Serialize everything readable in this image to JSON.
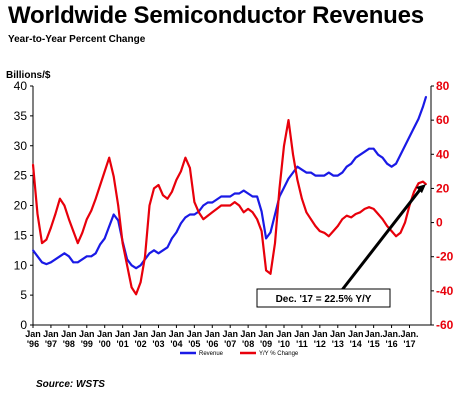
{
  "title": "Worldwide Semiconductor Revenues",
  "subtitle": "Year-to-Year Percent Change",
  "source": "Source: WSTS",
  "colors": {
    "revenue": "#1a1ae6",
    "yoy": "#e8000b",
    "arrow": "#000000"
  },
  "chart_data": {
    "type": "line",
    "ylabel": "Billions/$",
    "y_left_lim": [
      0,
      40
    ],
    "y_left_ticks": [
      "0",
      "5",
      "10",
      "15",
      "20",
      "25",
      "30",
      "35",
      "40"
    ],
    "y_right_lim": [
      -60,
      80
    ],
    "y_right_ticks": [
      "-60",
      "-40",
      "-20",
      "0",
      "20",
      "40",
      "60",
      "80"
    ],
    "grid": false,
    "legend_position": "bottom-center",
    "x_ticks": [
      {
        "l1": "Jan",
        "l2": "'96"
      },
      {
        "l1": "Jan",
        "l2": "'97"
      },
      {
        "l1": "Jan",
        "l2": "'98"
      },
      {
        "l1": "Jan",
        "l2": "'99"
      },
      {
        "l1": "Jan",
        "l2": "'00"
      },
      {
        "l1": "Jan",
        "l2": "'01"
      },
      {
        "l1": "Jan",
        "l2": "'02"
      },
      {
        "l1": "Jan",
        "l2": "'03"
      },
      {
        "l1": "Jan",
        "l2": "'04"
      },
      {
        "l1": "Jan",
        "l2": "'05"
      },
      {
        "l1": "Jan",
        "l2": "'06"
      },
      {
        "l1": "Jan",
        "l2": "'07"
      },
      {
        "l1": "Jan",
        "l2": "'08"
      },
      {
        "l1": "Jan",
        "l2": "'09"
      },
      {
        "l1": "Jan",
        "l2": "'10"
      },
      {
        "l1": "Jan",
        "l2": "'11"
      },
      {
        "l1": "Jan",
        "l2": "'12"
      },
      {
        "l1": "Jan",
        "l2": "'13"
      },
      {
        "l1": "Jan",
        "l2": "'14"
      },
      {
        "l1": "Jan.",
        "l2": "'15"
      },
      {
        "l1": "Jan.",
        "l2": "'16"
      },
      {
        "l1": "Jan.",
        "l2": "'17"
      }
    ],
    "x_range": [
      1996.0,
      2017.92
    ],
    "series": [
      {
        "name": "Revenue",
        "axis": "left",
        "x": [
          1996.0,
          1996.25,
          1996.5,
          1996.75,
          1997.0,
          1997.25,
          1997.5,
          1997.75,
          1998.0,
          1998.25,
          1998.5,
          1998.75,
          1999.0,
          1999.25,
          1999.5,
          1999.75,
          2000.0,
          2000.25,
          2000.5,
          2000.75,
          2001.0,
          2001.25,
          2001.5,
          2001.75,
          2002.0,
          2002.25,
          2002.5,
          2002.75,
          2003.0,
          2003.25,
          2003.5,
          2003.75,
          2004.0,
          2004.25,
          2004.5,
          2004.75,
          2005.0,
          2005.25,
          2005.5,
          2005.75,
          2006.0,
          2006.25,
          2006.5,
          2006.75,
          2007.0,
          2007.25,
          2007.5,
          2007.75,
          2008.0,
          2008.25,
          2008.5,
          2008.75,
          2009.0,
          2009.25,
          2009.5,
          2009.75,
          2010.0,
          2010.25,
          2010.5,
          2010.75,
          2011.0,
          2011.25,
          2011.5,
          2011.75,
          2012.0,
          2012.25,
          2012.5,
          2012.75,
          2013.0,
          2013.25,
          2013.5,
          2013.75,
          2014.0,
          2014.25,
          2014.5,
          2014.75,
          2015.0,
          2015.25,
          2015.5,
          2015.75,
          2016.0,
          2016.25,
          2016.5,
          2016.75,
          2017.0,
          2017.25,
          2017.5,
          2017.75,
          2017.92
        ],
        "y": [
          12.5,
          11.5,
          10.5,
          10.2,
          10.5,
          11,
          11.5,
          12,
          11.5,
          10.5,
          10.5,
          11,
          11.5,
          11.5,
          12,
          13.5,
          14.5,
          16.5,
          18.5,
          17.5,
          14,
          11,
          10,
          9.5,
          10,
          11,
          12,
          12.5,
          12,
          12.5,
          13,
          14.5,
          15.5,
          17,
          18,
          18.5,
          18.5,
          19,
          20,
          20.5,
          20.5,
          21,
          21.5,
          21.5,
          21.5,
          22,
          22,
          22.5,
          22,
          21.5,
          21.5,
          19,
          14.5,
          15.5,
          18.5,
          21.5,
          23,
          24.5,
          25.5,
          26.5,
          26,
          25.5,
          25.5,
          25,
          25,
          25,
          25.5,
          25,
          25,
          25.5,
          26.5,
          27,
          28,
          28.5,
          29,
          29.5,
          29.5,
          28.5,
          28,
          27,
          26.5,
          27,
          28.5,
          30,
          31.5,
          33,
          34.5,
          36.5,
          38.2
        ]
      },
      {
        "name": "Y/Y % Change",
        "axis": "right",
        "x": [
          1996.0,
          1996.25,
          1996.5,
          1996.75,
          1997.0,
          1997.25,
          1997.5,
          1997.75,
          1998.0,
          1998.25,
          1998.5,
          1998.75,
          1999.0,
          1999.25,
          1999.5,
          1999.75,
          2000.0,
          2000.25,
          2000.5,
          2000.75,
          2001.0,
          2001.25,
          2001.5,
          2001.75,
          2002.0,
          2002.25,
          2002.5,
          2002.75,
          2003.0,
          2003.25,
          2003.5,
          2003.75,
          2004.0,
          2004.25,
          2004.5,
          2004.75,
          2005.0,
          2005.25,
          2005.5,
          2005.75,
          2006.0,
          2006.25,
          2006.5,
          2006.75,
          2007.0,
          2007.25,
          2007.5,
          2007.75,
          2008.0,
          2008.25,
          2008.5,
          2008.75,
          2009.0,
          2009.25,
          2009.5,
          2009.75,
          2010.0,
          2010.25,
          2010.5,
          2010.75,
          2011.0,
          2011.25,
          2011.5,
          2011.75,
          2012.0,
          2012.25,
          2012.5,
          2012.75,
          2013.0,
          2013.25,
          2013.5,
          2013.75,
          2014.0,
          2014.25,
          2014.5,
          2014.75,
          2015.0,
          2015.25,
          2015.5,
          2015.75,
          2016.0,
          2016.25,
          2016.5,
          2016.75,
          2017.0,
          2017.25,
          2017.5,
          2017.75,
          2017.92
        ],
        "y": [
          34,
          5,
          -12,
          -10,
          -3,
          5,
          14,
          10,
          2,
          -5,
          -12,
          -6,
          2,
          7,
          14,
          22,
          30,
          38,
          27,
          10,
          -12,
          -25,
          -38,
          -42,
          -35,
          -20,
          10,
          20,
          22,
          16,
          14,
          18,
          25,
          30,
          38,
          32,
          12,
          6,
          2,
          4,
          6,
          8,
          10,
          10,
          10,
          12,
          10,
          6,
          8,
          6,
          2,
          -5,
          -28,
          -30,
          -12,
          20,
          45,
          60,
          40,
          25,
          14,
          6,
          2,
          -2,
          -5,
          -6,
          -8,
          -5,
          -2,
          2,
          4,
          3,
          5,
          6,
          8,
          9,
          8,
          5,
          2,
          -2,
          -5,
          -8,
          -6,
          0,
          10,
          18,
          23,
          24,
          22.5
        ]
      }
    ],
    "annotation": "Dec. '17 = 22.5% Y/Y"
  }
}
